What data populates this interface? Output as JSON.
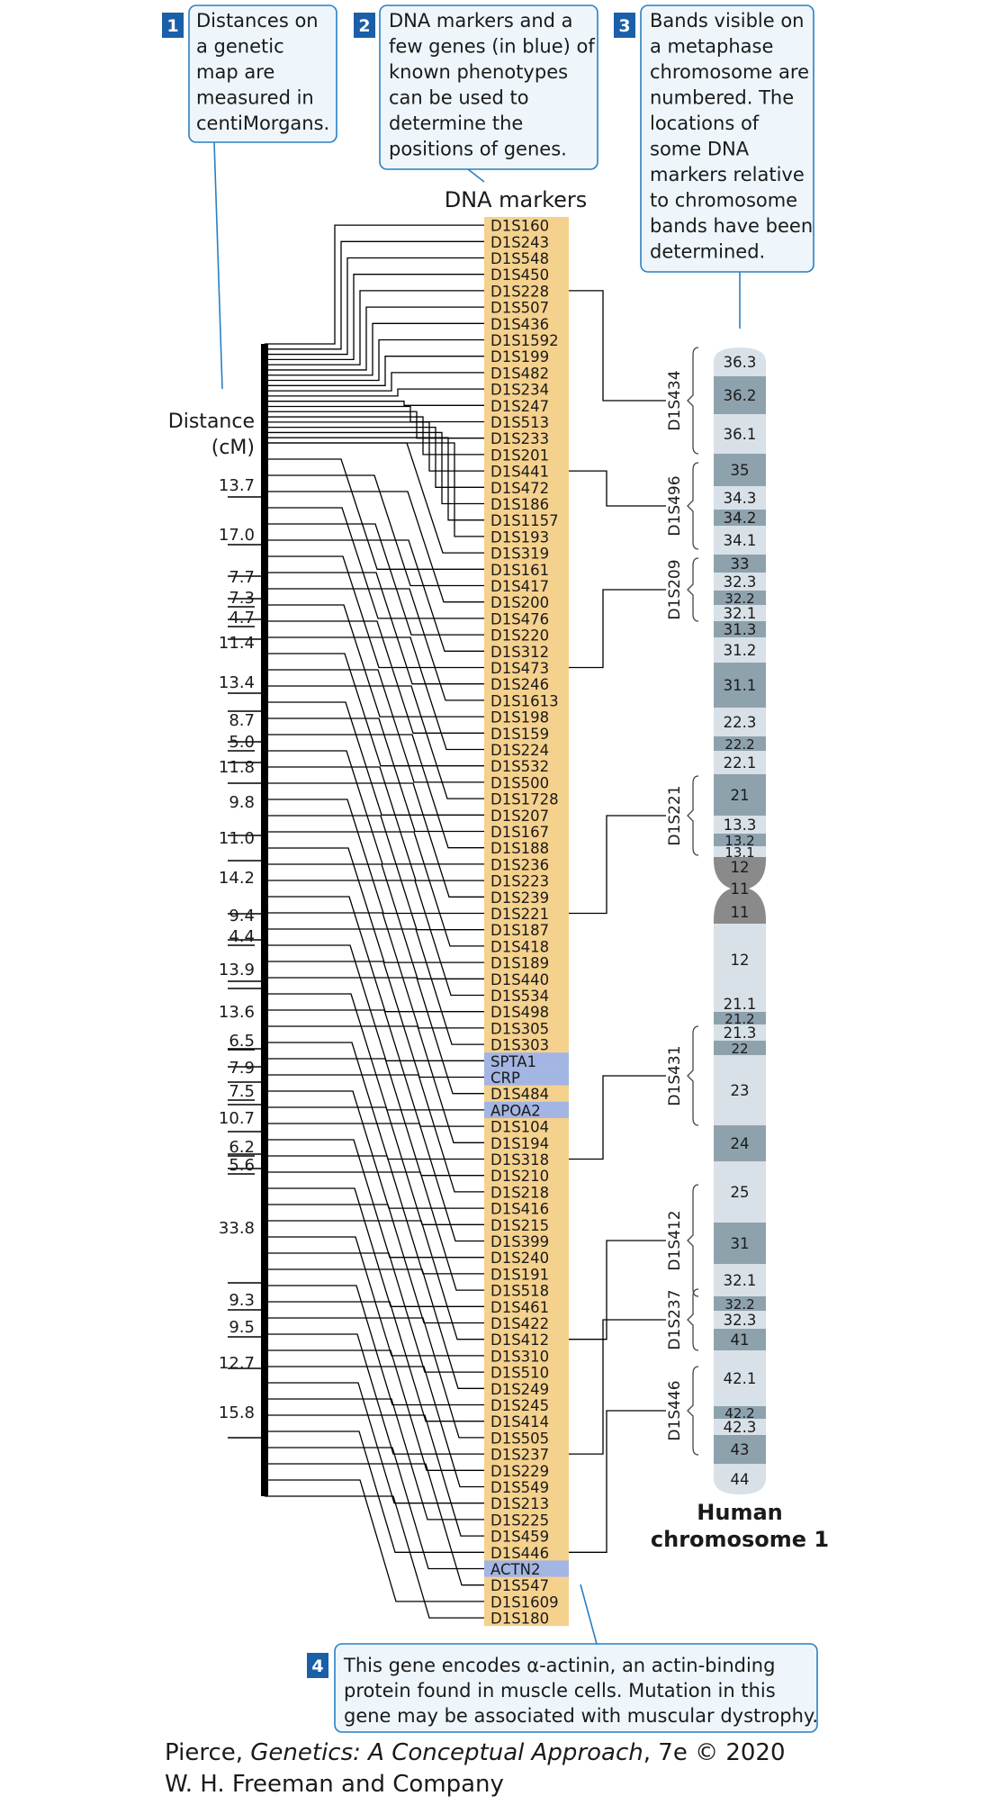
{
  "callouts": [
    {
      "number": "1",
      "lines": [
        "Distances on",
        "a genetic",
        "map are",
        "measured in",
        "centiMorgans."
      ]
    },
    {
      "number": "2",
      "lines": [
        "DNA markers and a",
        "few genes (in blue) of",
        "known phenotypes",
        "can be used to",
        "determine the",
        "positions of genes."
      ]
    },
    {
      "number": "3",
      "lines": [
        "Bands visible on",
        "a metaphase",
        "chromosome are",
        "numbered. The",
        "locations of",
        "some DNA",
        "markers relative",
        "to chromosome",
        "bands have been",
        "determined."
      ]
    },
    {
      "number": "4",
      "lines": [
        "This gene encodes α-actinin, an actin-binding",
        "protein found in muscle cells. Mutation in this",
        "gene may be associated with muscular dystrophy."
      ]
    }
  ],
  "markers_heading": "DNA markers",
  "distance_heading": [
    "Distance",
    "(cM)"
  ],
  "markers": [
    "D1S160",
    "D1S243",
    "D1S548",
    "D1S450",
    "D1S228",
    "D1S507",
    "D1S436",
    "D1S1592",
    "D1S199",
    "D1S482",
    "D1S234",
    "D1S247",
    "D1S513",
    "D1S233",
    "D1S201",
    "D1S441",
    "D1S472",
    "D1S186",
    "D1S1157",
    "D1S193",
    "D1S319",
    "D1S161",
    "D1S417",
    "D1S200",
    "D1S476",
    "D1S220",
    "D1S312",
    "D1S473",
    "D1S246",
    "D1S1613",
    "D1S198",
    "D1S159",
    "D1S224",
    "D1S532",
    "D1S500",
    "D1S1728",
    "D1S207",
    "D1S167",
    "D1S188",
    "D1S236",
    "D1S223",
    "D1S239",
    "D1S221",
    "D1S187",
    "D1S418",
    "D1S189",
    "D1S440",
    "D1S534",
    "D1S498",
    "D1S305",
    "D1S303",
    "SPTA1",
    "CRP",
    "D1S484",
    "APOA2",
    "D1S104",
    "D1S194",
    "D1S318",
    "D1S210",
    "D1S218",
    "D1S416",
    "D1S215",
    "D1S399",
    "D1S240",
    "D1S191",
    "D1S518",
    "D1S461",
    "D1S422",
    "D1S412",
    "D1S310",
    "D1S510",
    "D1S249",
    "D1S245",
    "D1S414",
    "D1S505",
    "D1S237",
    "D1S229",
    "D1S549",
    "D1S213",
    "D1S225",
    "D1S459",
    "D1S446",
    "ACTN2",
    "D1S547",
    "D1S1609",
    "D1S180"
  ],
  "genes_in_blue": [
    "SPTA1",
    "CRP",
    "APOA2",
    "ACTN2"
  ],
  "distances": [
    "13.7",
    "17.0",
    "7.7",
    "7.3",
    "4.7",
    "11.4",
    "13.4",
    "8.7",
    "5.0",
    "11.8",
    "9.8",
    "11.0",
    "14.2",
    "9.4",
    "4.4",
    "13.9",
    "13.6",
    "6.5",
    "7.9",
    "7.5",
    "10.7",
    "6.2",
    "5.6",
    "33.8",
    "9.3",
    "9.5",
    "12.7",
    "15.8"
  ],
  "underlined_distances": [
    "7.3",
    "4.7",
    "5.0",
    "4.4",
    "6.5",
    "7.5",
    "6.2",
    "5.6"
  ],
  "chromosome_title": [
    "Human",
    "chromosome 1"
  ],
  "bands": [
    "36.3",
    "36.2",
    "36.1",
    "35",
    "34.3",
    "34.2",
    "34.1",
    "33",
    "32.3",
    "32.2",
    "32.1",
    "31.3",
    "31.2",
    "31.1",
    "22.3",
    "22.2",
    "22.1",
    "21",
    "13.3",
    "13.2",
    "13.1",
    "12",
    "11",
    "11",
    "12",
    "21.1",
    "21.2",
    "21.3",
    "22",
    "23",
    "24",
    "25",
    "31",
    "32.1",
    "32.2",
    "32.3",
    "41",
    "42.1",
    "42.2",
    "42.3",
    "43",
    "44"
  ],
  "band_markers": [
    "D1S434",
    "D1S496",
    "D1S209",
    "D1S221",
    "D1S431",
    "D1S412",
    "D1S237",
    "D1S446"
  ],
  "credit": {
    "line1_prefix": "Pierce, ",
    "line1_title": "Genetics: A Conceptual Approach",
    "line1_suffix": ", 7e © 2020",
    "line2": "W. H. Freeman and Company"
  },
  "colors": {
    "callout_fill": "#eef6fc",
    "callout_border": "#2a7fc1",
    "number_fill": "#1a5fa8",
    "marker_bg": "#f5d18e",
    "gene_bg": "#a3b5e3",
    "chrom_light": "#d8e1e7",
    "chrom_dark": "#8ea2ae",
    "centromere": "#8a8a8a"
  }
}
